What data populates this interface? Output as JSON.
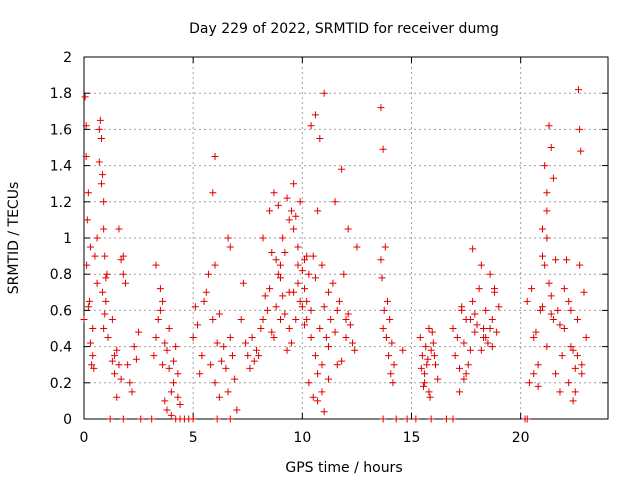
{
  "chart_data": {
    "type": "scatter",
    "title": "Day 229 of 2022, SRMTID for receiver dumg",
    "xlabel": "GPS time / hours",
    "ylabel": "SRMTID / TECUs",
    "xlim": [
      0,
      24
    ],
    "ylim": [
      0,
      2
    ],
    "xticks": [
      0,
      5,
      10,
      15,
      20
    ],
    "xtick_labels": [
      "0",
      "5",
      "10",
      "15",
      "20"
    ],
    "yticks": [
      0,
      0.2,
      0.4,
      0.6,
      0.8,
      1,
      1.2,
      1.4,
      1.6,
      1.8,
      2
    ],
    "ytick_labels": [
      "0",
      "0.2",
      "0.4",
      "0.6",
      "0.8",
      "1",
      "1.2",
      "1.4",
      "1.6",
      "1.8",
      "2"
    ],
    "grid": true,
    "marker": "plus",
    "color": "#e00000",
    "series": [
      {
        "name": "SRMTID",
        "x": [
          0.0,
          0.05,
          0.1,
          0.12,
          0.15,
          0.2,
          0.25,
          0.3,
          0.35,
          0.4,
          0.45,
          0.5,
          0.6,
          0.7,
          0.75,
          0.8,
          0.85,
          0.9,
          0.95,
          1.0,
          1.05,
          1.1,
          0.1,
          0.2,
          0.3,
          0.4,
          0.6,
          0.7,
          0.8,
          0.9,
          1.0,
          0.95,
          0.9,
          0.85,
          1.3,
          1.4,
          1.5,
          1.6,
          1.7,
          1.8,
          1.3,
          1.4,
          1.5,
          1.6,
          1.7,
          1.8,
          1.9,
          2.0,
          2.1,
          2.2,
          2.3,
          2.4,
          2.5,
          3.2,
          3.3,
          3.4,
          3.5,
          3.6,
          3.7,
          3.8,
          3.9,
          4.0,
          4.1,
          4.2,
          4.3,
          4.4,
          3.3,
          3.5,
          3.7,
          3.9,
          4.1,
          4.3,
          3.6,
          3.8,
          4.0,
          5.0,
          5.2,
          5.4,
          5.6,
          5.8,
          6.0,
          6.2,
          6.4,
          6.6,
          6.8,
          7.0,
          5.5,
          5.7,
          5.9,
          6.1,
          6.3,
          6.5,
          6.7,
          6.9,
          5.9,
          6.0,
          6.6,
          6.7,
          5.1,
          5.3,
          6.0,
          6.2,
          7.2,
          7.4,
          7.6,
          7.8,
          8.0,
          8.2,
          8.4,
          8.6,
          8.8,
          9.0,
          9.2,
          9.4,
          9.6,
          9.8,
          10.0,
          7.3,
          7.5,
          7.7,
          7.9,
          8.1,
          8.3,
          8.5,
          8.7,
          8.9,
          9.1,
          9.3,
          9.5,
          9.7,
          9.9,
          10.1,
          8.6,
          8.8,
          9.0,
          9.2,
          9.4,
          9.6,
          9.8,
          10.0,
          10.2,
          8.7,
          8.9,
          9.1,
          9.3,
          9.5,
          9.7,
          9.9,
          10.1,
          10.3,
          9.0,
          9.4,
          9.8,
          10.2,
          8.2,
          8.5,
          9.6,
          10.4,
          10.2,
          10.4,
          10.6,
          10.8,
          11.0,
          11.2,
          11.4,
          11.6,
          11.8,
          12.0,
          12.2,
          12.4,
          10.3,
          10.5,
          10.7,
          10.9,
          11.1,
          11.3,
          11.5,
          11.7,
          11.9,
          12.1,
          12.3,
          10.4,
          10.6,
          10.8,
          11.0,
          11.5,
          11.8,
          12.1,
          12.5,
          10.5,
          10.7,
          10.9,
          11.2,
          10.1,
          10.6,
          10.9,
          11.0,
          10.7,
          11.2,
          11.6,
          12.0,
          13.6,
          13.7,
          13.8,
          13.9,
          14.0,
          14.1,
          14.2,
          13.65,
          13.75,
          13.85,
          13.95,
          14.05,
          14.15,
          13.6,
          13.7,
          14.6,
          15.4,
          15.5,
          15.6,
          15.7,
          15.8,
          15.9,
          16.0,
          16.1,
          16.2,
          15.45,
          15.55,
          15.65,
          15.75,
          15.85,
          15.95,
          16.05,
          15.6,
          15.8,
          16.9,
          17.1,
          17.3,
          17.5,
          17.7,
          17.9,
          18.1,
          18.3,
          18.5,
          18.7,
          18.9,
          19.0,
          17.0,
          17.2,
          17.4,
          17.6,
          17.8,
          18.0,
          18.2,
          18.4,
          18.6,
          18.8,
          17.2,
          17.4,
          17.8,
          18.2,
          18.4,
          18.6,
          18.8,
          17.5,
          17.9,
          18.3,
          18.7,
          17.3,
          17.7,
          20.3,
          20.5,
          20.7,
          20.9,
          21.0,
          21.1,
          21.2,
          21.3,
          21.4,
          21.5,
          21.6,
          21.7,
          21.8,
          21.9,
          20.4,
          20.6,
          20.8,
          21.0,
          21.2,
          21.4,
          21.6,
          21.8,
          21.0,
          21.2,
          21.1,
          21.3,
          21.4,
          21.5,
          21.2,
          20.6,
          20.8,
          22.0,
          22.2,
          22.4,
          22.6,
          22.8,
          23.0,
          22.1,
          22.3,
          22.5,
          22.7,
          22.9,
          22.2,
          22.4,
          22.6,
          22.8,
          22.65,
          22.7,
          22.75,
          22.0,
          22.3,
          22.5,
          1.2,
          1.8,
          2.6,
          3.1,
          4.2,
          4.4,
          4.6,
          4.8,
          5.0,
          6.1,
          6.7,
          13.7,
          14.3,
          14.8,
          15.2,
          15.9,
          16.6,
          16.9,
          20.2,
          20.3
        ],
        "y": [
          0.55,
          1.78,
          1.45,
          0.85,
          1.1,
          0.62,
          0.65,
          0.42,
          0.3,
          0.35,
          0.28,
          0.9,
          0.75,
          1.6,
          1.65,
          1.3,
          1.35,
          1.2,
          0.9,
          0.65,
          0.8,
          0.45,
          1.62,
          1.25,
          0.95,
          0.5,
          1.0,
          1.42,
          1.55,
          0.5,
          0.78,
          0.58,
          1.05,
          0.7,
          0.32,
          0.25,
          0.38,
          0.3,
          0.22,
          0.9,
          0.55,
          0.35,
          0.12,
          1.05,
          0.88,
          0.8,
          0.75,
          0.3,
          0.2,
          0.15,
          0.4,
          0.33,
          0.48,
          0.35,
          0.45,
          0.55,
          0.6,
          0.3,
          0.1,
          0.05,
          0.5,
          0.15,
          0.2,
          0.4,
          0.25,
          0.08,
          0.85,
          0.72,
          0.42,
          0.28,
          0.32,
          0.12,
          0.65,
          0.38,
          0.02,
          0.45,
          0.52,
          0.35,
          0.7,
          0.3,
          0.2,
          0.12,
          0.4,
          0.15,
          0.35,
          0.05,
          0.65,
          0.8,
          0.55,
          0.42,
          0.32,
          0.28,
          0.45,
          0.22,
          1.25,
          1.45,
          1.0,
          0.95,
          0.62,
          0.25,
          0.85,
          0.58,
          0.55,
          0.42,
          0.28,
          0.32,
          0.35,
          0.55,
          0.6,
          0.48,
          0.62,
          0.55,
          0.58,
          0.5,
          0.7,
          0.85,
          0.62,
          0.75,
          0.35,
          0.45,
          0.38,
          0.5,
          0.68,
          0.72,
          0.45,
          0.8,
          0.68,
          0.38,
          0.42,
          0.55,
          0.65,
          0.72,
          0.92,
          0.88,
          0.85,
          0.92,
          1.1,
          1.05,
          0.95,
          0.82,
          0.9,
          1.25,
          1.18,
          1.0,
          1.22,
          1.15,
          1.12,
          1.2,
          0.88,
          0.8,
          0.78,
          0.7,
          0.75,
          0.65,
          1.0,
          1.15,
          1.3,
          0.6,
          0.55,
          0.45,
          0.35,
          0.5,
          0.62,
          0.4,
          0.75,
          0.6,
          0.32,
          0.45,
          0.52,
          0.38,
          0.2,
          0.12,
          0.25,
          0.3,
          0.45,
          0.55,
          0.48,
          0.65,
          0.8,
          0.58,
          0.42,
          1.62,
          1.68,
          1.55,
          1.8,
          1.2,
          1.38,
          1.05,
          0.95,
          0.9,
          1.15,
          0.85,
          0.7,
          0.52,
          0.78,
          0.15,
          0.04,
          0.1,
          0.22,
          0.3,
          0.55,
          1.72,
          1.49,
          0.95,
          0.65,
          0.55,
          0.42,
          0.3,
          0.78,
          0.6,
          0.45,
          0.35,
          0.25,
          0.2,
          0.88,
          0.5,
          0.38,
          0.45,
          0.35,
          0.25,
          0.3,
          0.5,
          0.38,
          0.42,
          0.3,
          0.22,
          0.28,
          0.18,
          0.4,
          0.33,
          0.12,
          0.48,
          0.35,
          0.2,
          0.15,
          0.5,
          0.45,
          0.6,
          0.55,
          0.38,
          0.48,
          0.72,
          0.5,
          0.42,
          0.55,
          0.48,
          0.62,
          0.35,
          0.28,
          0.42,
          0.3,
          0.65,
          0.52,
          0.38,
          0.45,
          0.8,
          0.72,
          0.15,
          0.22,
          0.94,
          0.85,
          0.6,
          0.5,
          0.7,
          0.25,
          0.58,
          0.45,
          0.4,
          0.62,
          0.55,
          0.65,
          0.72,
          0.48,
          0.6,
          0.9,
          0.85,
          1.0,
          0.75,
          0.68,
          0.55,
          0.88,
          0.6,
          0.52,
          0.35,
          0.2,
          0.45,
          0.3,
          0.62,
          0.4,
          0.58,
          0.25,
          0.15,
          1.05,
          1.25,
          1.4,
          1.62,
          1.5,
          1.33,
          1.15,
          0.25,
          0.18,
          0.72,
          0.65,
          0.38,
          0.55,
          0.3,
          0.45,
          0.88,
          0.6,
          0.28,
          0.85,
          0.7,
          0.2,
          0.1,
          0.35,
          0.25,
          1.82,
          1.6,
          1.48,
          0.5,
          0.4,
          0.15,
          0.0,
          0.0,
          0.0,
          0.0,
          0.0,
          0.0,
          0.0,
          0.0,
          0.0,
          0.0,
          0.0,
          0.0,
          0.0,
          0.0,
          0.0,
          0.0,
          0.0,
          0.0,
          0.0,
          0.0
        ]
      }
    ]
  }
}
